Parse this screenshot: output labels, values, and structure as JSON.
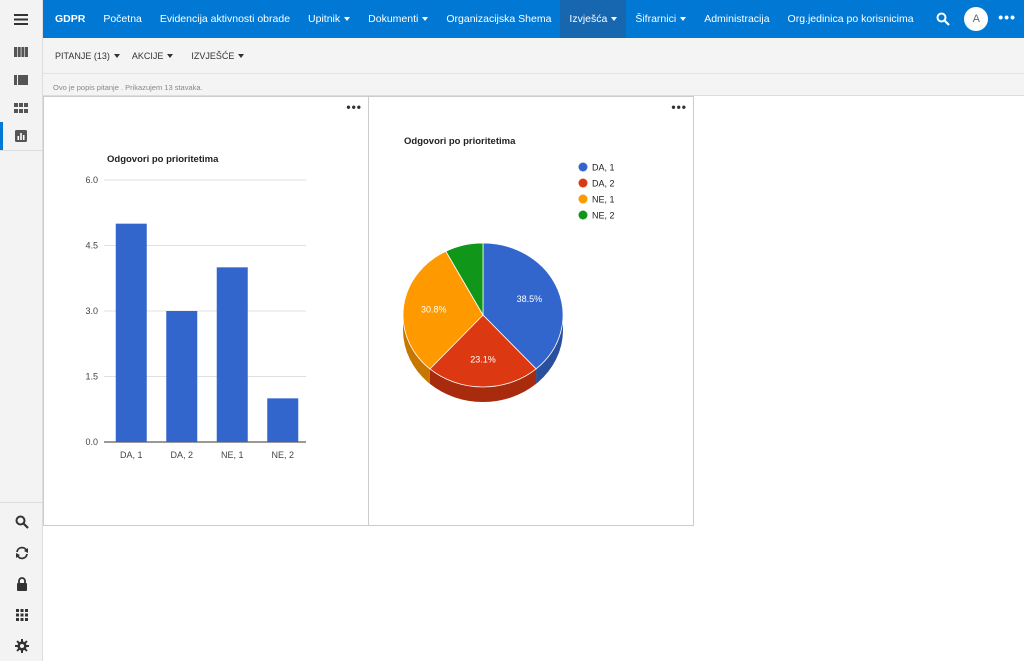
{
  "nav": {
    "brand": "GDPR",
    "items": [
      {
        "label": "Početna",
        "caret": false
      },
      {
        "label": "Evidencija aktivnosti obrade",
        "caret": false
      },
      {
        "label": "Upitnik",
        "caret": true
      },
      {
        "label": "Dokumenti",
        "caret": true
      },
      {
        "label": "Organizacijska Shema",
        "caret": false
      },
      {
        "label": "Izvješća",
        "caret": true,
        "active": true
      },
      {
        "label": "Šifrarnici",
        "caret": true
      },
      {
        "label": "Administracija",
        "caret": false
      },
      {
        "label": "Org.jedinica po korisnicima",
        "caret": false
      }
    ],
    "avatar": "A",
    "more": "•••"
  },
  "commands": {
    "pitanje": "PITANJE (13)",
    "akcije": "AKCIJE",
    "izvjesce": "IZVJEŠĆE"
  },
  "info": "Ovo je popis pitanje . Prikazujem 13 stavaka.",
  "panel_menu": "•••",
  "colors": {
    "primary": "#0078d4",
    "bar": "#3366cc",
    "da1": "#3366cc",
    "da2": "#dc3912",
    "ne1": "#ff9900",
    "ne2": "#109618"
  },
  "chart_data": [
    {
      "type": "bar",
      "title": "Odgovori po prioritetima",
      "categories": [
        "DA, 1",
        "DA, 2",
        "NE, 1",
        "NE, 2"
      ],
      "values": [
        5,
        3,
        4,
        1
      ],
      "yticks": [
        "6.0",
        "4.5",
        "3.0",
        "1.5",
        "0.0"
      ],
      "ylim": [
        0,
        6
      ],
      "grid": true
    },
    {
      "type": "pie",
      "title": "Odgovori po prioritetima",
      "labels": [
        "DA, 1",
        "DA, 2",
        "NE, 1",
        "NE, 2"
      ],
      "values": [
        5,
        3,
        4,
        1
      ],
      "percent_labels": [
        "38.5%",
        "23.1%",
        "30.8%",
        ""
      ],
      "legend": "top-right"
    }
  ]
}
